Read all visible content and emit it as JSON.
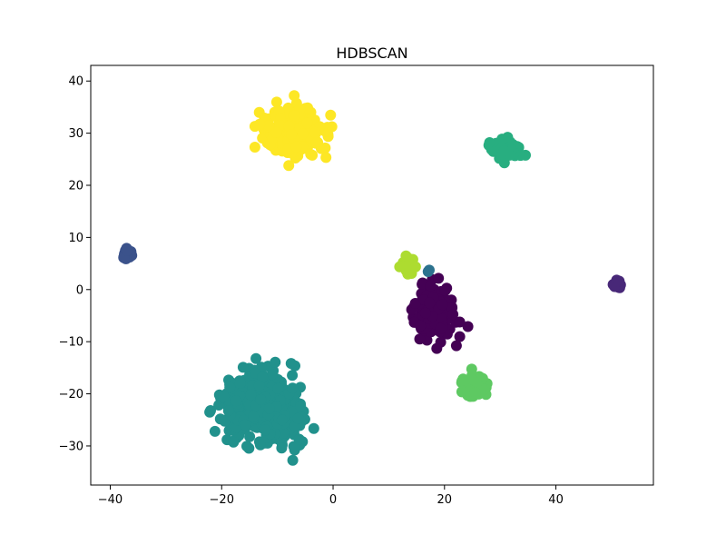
{
  "chart_data": {
    "type": "scatter",
    "title": "HDBSCAN",
    "xlabel": "",
    "ylabel": "",
    "xlim": [
      -43.5,
      57.5
    ],
    "ylim": [
      -37.5,
      43.0
    ],
    "xticks": [
      -40,
      -20,
      0,
      20,
      40
    ],
    "yticks": [
      -30,
      -20,
      -10,
      0,
      10,
      20,
      30,
      40
    ],
    "grid": false,
    "clusters": [
      {
        "label": "-1",
        "color": "#440154",
        "center": [
          18.5,
          -4.5
        ],
        "spread": [
          3.5,
          4.5
        ],
        "count": 120
      },
      {
        "label": "0",
        "color": "#482878",
        "center": [
          51.0,
          1.0
        ],
        "spread": [
          0.6,
          0.5
        ],
        "count": 30
      },
      {
        "label": "1",
        "color": "#3b528b",
        "center": [
          -37.0,
          6.7
        ],
        "spread": [
          0.8,
          0.8
        ],
        "count": 40
      },
      {
        "label": "2",
        "color": "#2c728e",
        "center": [
          17.2,
          3.4
        ],
        "spread": [
          0.3,
          0.3
        ],
        "count": 2
      },
      {
        "label": "3",
        "color": "#21918c",
        "center": [
          -12.5,
          -22.5
        ],
        "spread": [
          6.0,
          5.5
        ],
        "count": 450
      },
      {
        "label": "4",
        "color": "#28ae80",
        "center": [
          31.0,
          27.0
        ],
        "spread": [
          1.9,
          1.5
        ],
        "count": 100
      },
      {
        "label": "5",
        "color": "#5ec962",
        "center": [
          25.5,
          -18.5
        ],
        "spread": [
          1.8,
          1.8
        ],
        "count": 100
      },
      {
        "label": "6",
        "color": "#addc30",
        "center": [
          13.5,
          4.5
        ],
        "spread": [
          1.0,
          1.3
        ],
        "count": 40
      },
      {
        "label": "7",
        "color": "#fde725",
        "center": [
          -7.0,
          30.0
        ],
        "spread": [
          4.5,
          3.8
        ],
        "count": 300
      }
    ]
  }
}
